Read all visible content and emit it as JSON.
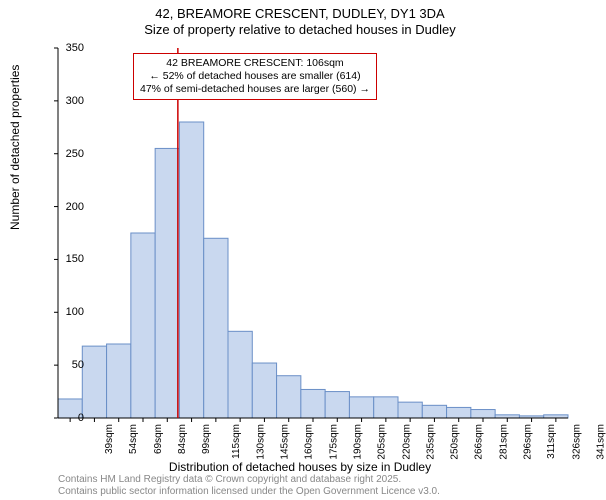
{
  "title": {
    "line1": "42, BREAMORE CRESCENT, DUDLEY, DY1 3DA",
    "line2": "Size of property relative to detached houses in Dudley"
  },
  "ylabel": "Number of detached properties",
  "xlabel": "Distribution of detached houses by size in Dudley",
  "footer": {
    "line1": "Contains HM Land Registry data © Crown copyright and database right 2025.",
    "line2": "Contains public sector information licensed under the Open Government Licence v3.0."
  },
  "callout": {
    "line1": "42 BREAMORE CRESCENT: 106sqm",
    "line2": "← 52% of detached houses are smaller (614)",
    "line3": "47% of semi-detached houses are larger (560) →"
  },
  "chart": {
    "type": "histogram",
    "ylim": [
      0,
      350
    ],
    "ytick_step": 50,
    "categories": [
      "39sqm",
      "54sqm",
      "69sqm",
      "84sqm",
      "99sqm",
      "115sqm",
      "130sqm",
      "145sqm",
      "160sqm",
      "175sqm",
      "190sqm",
      "205sqm",
      "220sqm",
      "235sqm",
      "250sqm",
      "266sqm",
      "281sqm",
      "296sqm",
      "311sqm",
      "326sqm",
      "341sqm"
    ],
    "values": [
      18,
      68,
      70,
      175,
      255,
      280,
      170,
      82,
      52,
      40,
      27,
      25,
      20,
      20,
      15,
      12,
      10,
      8,
      3,
      2,
      3
    ],
    "bar_fill": "#c9d8ef",
    "bar_stroke": "#6a8fc7",
    "axis_color": "#000000",
    "tick_color": "#000000",
    "marker_line_color": "#cc0000",
    "marker_x_value": 106,
    "x_domain": [
      31.5,
      348.5
    ],
    "background": "#ffffff",
    "title_fontsize": 13,
    "label_fontsize": 12,
    "tick_fontsize": 11,
    "xtick_fontsize": 10
  }
}
